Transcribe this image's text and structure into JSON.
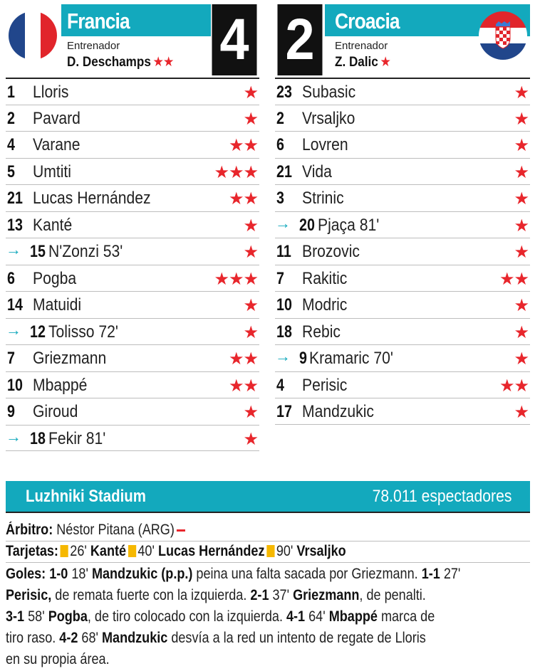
{
  "home": {
    "name": "Francia",
    "coach_label": "Entrenador",
    "coach": "D. Deschamps",
    "coach_stars": "★★",
    "score": "4",
    "players": [
      {
        "num": "1",
        "name": "Lloris",
        "stars": "★",
        "sub": false
      },
      {
        "num": "2",
        "name": "Pavard",
        "stars": "★",
        "sub": false
      },
      {
        "num": "4",
        "name": "Varane",
        "stars": "★★",
        "sub": false
      },
      {
        "num": "5",
        "name": "Umtiti",
        "stars": "★★★",
        "sub": false
      },
      {
        "num": "21",
        "name": "Lucas Hernández",
        "stars": "★★",
        "sub": false
      },
      {
        "num": "13",
        "name": "Kanté",
        "stars": "★",
        "sub": false
      },
      {
        "num": "15",
        "name": "N'Zonzi 53'",
        "stars": "★",
        "sub": true
      },
      {
        "num": "6",
        "name": "Pogba",
        "stars": "★★★",
        "sub": false
      },
      {
        "num": "14",
        "name": "Matuidi",
        "stars": "★",
        "sub": false
      },
      {
        "num": "12",
        "name": "Tolisso 72'",
        "stars": "★",
        "sub": true
      },
      {
        "num": "7",
        "name": "Griezmann",
        "stars": "★★",
        "sub": false
      },
      {
        "num": "10",
        "name": "Mbappé",
        "stars": "★★",
        "sub": false
      },
      {
        "num": "9",
        "name": "Giroud",
        "stars": "★",
        "sub": false
      },
      {
        "num": "18",
        "name": "Fekir 81'",
        "stars": "★",
        "sub": true
      }
    ]
  },
  "away": {
    "name": "Croacia",
    "coach_label": "Entrenador",
    "coach": "Z. Dalic",
    "coach_stars": "★",
    "score": "2",
    "players": [
      {
        "num": "23",
        "name": "Subasic",
        "stars": "★",
        "sub": false
      },
      {
        "num": "2",
        "name": "Vrsaljko",
        "stars": "★",
        "sub": false
      },
      {
        "num": "6",
        "name": "Lovren",
        "stars": "★",
        "sub": false
      },
      {
        "num": "21",
        "name": "Vida",
        "stars": "★",
        "sub": false
      },
      {
        "num": "3",
        "name": "Strinic",
        "stars": "★",
        "sub": false
      },
      {
        "num": "20",
        "name": "Pjaça 81'",
        "stars": "★",
        "sub": true
      },
      {
        "num": "11",
        "name": "Brozovic",
        "stars": "★",
        "sub": false
      },
      {
        "num": "7",
        "name": "Rakitic",
        "stars": "★★",
        "sub": false
      },
      {
        "num": "10",
        "name": "Modric",
        "stars": "★",
        "sub": false
      },
      {
        "num": "18",
        "name": "Rebic",
        "stars": "★",
        "sub": false
      },
      {
        "num": "9",
        "name": "Kramaric 70'",
        "stars": "★",
        "sub": true
      },
      {
        "num": "4",
        "name": "Perisic",
        "stars": "★★",
        "sub": false
      },
      {
        "num": "17",
        "name": "Mandzukic",
        "stars": "★",
        "sub": false
      }
    ]
  },
  "icons": {
    "sub_arrow": "arrow-right-icon",
    "rating_star": "star-icon",
    "card": "yellow-card-icon"
  },
  "colors": {
    "accent": "#13a9bd",
    "star": "#e8262c",
    "card": "#f6b800",
    "score_bg": "#111111"
  },
  "venue": {
    "name": "Luzhniki Stadium",
    "attendance": "78.011 espectadores"
  },
  "referee": {
    "label": "Árbitro:",
    "value": "Néstor Pitana (ARG)"
  },
  "cards": {
    "label": "Tarjetas:",
    "items": [
      {
        "minute": "26'",
        "player": "Kanté"
      },
      {
        "minute": "40'",
        "player": "Lucas Hernández"
      },
      {
        "minute": "90'",
        "player": "Vrsaljko"
      }
    ]
  },
  "goals": {
    "label": "Goles:",
    "g1_score": "1-0",
    "g1_min": "18'",
    "g1_player": "Mandzukic (p.p.)",
    "g1_desc": "peina una falta sacada por Griezmann.",
    "g2_score": "1-1",
    "g2_min": "27'",
    "g2_player": "Perisic,",
    "g2_desc": "de remata fuerte con la izquierda.",
    "g3_score": "2-1",
    "g3_min": "37'",
    "g3_player": "Griezmann",
    "g3_desc": ", de penalti.",
    "g4_score": "3-1",
    "g4_min": "58'",
    "g4_player": "Pogba",
    "g4_desc": ", de tiro colocado con la izquierda.",
    "g5_score": "4-1",
    "g5_min": "64'",
    "g5_player": "Mbappé",
    "g5_desc_a": "marca de",
    "g5_desc_b": "tiro raso.",
    "g6_score": "4-2",
    "g6_min": "68'",
    "g6_player": "Mandzukic",
    "g6_desc_a": "desvía a la red un intento de regate de Lloris",
    "g6_desc_b": "en su propia área."
  }
}
